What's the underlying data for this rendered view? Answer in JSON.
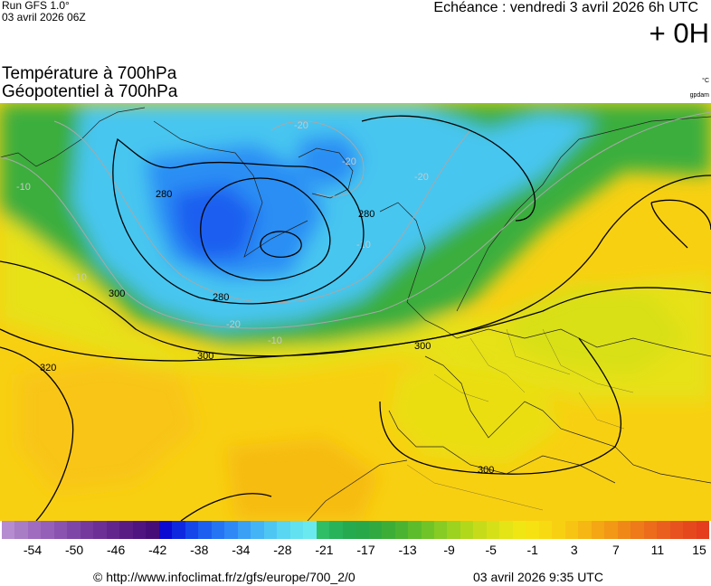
{
  "header": {
    "run_label": "Run GFS 1.0°",
    "run_date": "03 avril 2026 06Z",
    "valid_label": "Echéance : vendredi 3 avril 2026 6h UTC",
    "lead_time": "+ 0H",
    "title_line1": "Température à 700hPa",
    "title_line2": "Géopotentiel à 700hPa",
    "unit_temp": "°C",
    "unit_geo": "gpdam"
  },
  "map": {
    "geopotential_labels": [
      "280",
      "280",
      "280",
      "300",
      "300",
      "300",
      "300",
      "320"
    ],
    "temperature_labels": [
      "-20",
      "-20",
      "-20",
      "-20",
      "-10",
      "-10",
      "-10",
      "-10"
    ]
  },
  "colorbar": {
    "tick_labels": [
      "-54",
      "-50",
      "-46",
      "-42",
      "-38",
      "-34",
      "-28",
      "-21",
      "-17",
      "-13",
      "-9",
      "-5",
      "-1",
      "3",
      "7",
      "11",
      "15"
    ],
    "colors": [
      "#b58ccf",
      "#a97cc6",
      "#9f6cbf",
      "#9560b8",
      "#8a53af",
      "#7e46a6",
      "#75399e",
      "#6c2f95",
      "#62248d",
      "#591c85",
      "#501480",
      "#460d79",
      "#0a0ad2",
      "#0e28e0",
      "#1446ea",
      "#1c5ef0",
      "#2474f4",
      "#2e88f6",
      "#3aa0f6",
      "#44b4f6",
      "#4ec6f4",
      "#58d6f2",
      "#62e2f0",
      "#6aeaee",
      "#2fbd66",
      "#28b25a",
      "#25aa50",
      "#28a848",
      "#30aa40",
      "#3cae38",
      "#4ab432",
      "#5cbc2c",
      "#70c428",
      "#86cc24",
      "#9cd220",
      "#b2d81c",
      "#c6dc1a",
      "#d6e018",
      "#e4e416",
      "#f0e614",
      "#f6e212",
      "#f8da12",
      "#f8d012",
      "#f8c414",
      "#f6b614",
      "#f4a614",
      "#f29816",
      "#f08818",
      "#ee7a1a",
      "#ec6c1c",
      "#ea5e1e",
      "#e8521e",
      "#e6481e",
      "#e43e1e"
    ]
  },
  "footer": {
    "copyright": "© http://www.infoclimat.fr/z/gfs/europe/700_2/0",
    "generated": "03 avril 2026  9:35 UTC"
  }
}
